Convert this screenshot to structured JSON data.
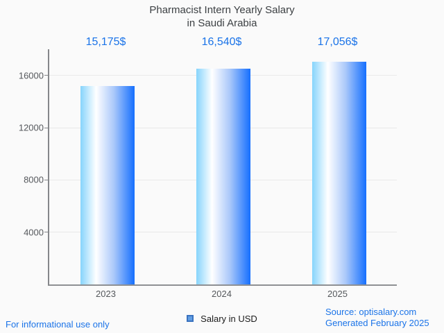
{
  "title": {
    "line1": "Pharmacist Intern Yearly Salary",
    "line2": "in Saudi Arabia"
  },
  "chart_data": {
    "type": "bar",
    "title": "Pharmacist Intern Yearly Salary in Saudi Arabia",
    "categories": [
      "2023",
      "2024",
      "2025"
    ],
    "values": [
      15175,
      16540,
      17056
    ],
    "value_labels": [
      "15,175$",
      "16,540$",
      "17,056$"
    ],
    "series_name": "Salary in USD",
    "xlabel": "",
    "ylabel": "",
    "yticks": [
      4000,
      8000,
      12000,
      16000
    ],
    "ylim": [
      0,
      18000
    ],
    "grid": "horizontal",
    "legend_position": "bottom-center",
    "bar_gradient": [
      "#86d4fc",
      "#ffffff",
      "#156ffe"
    ]
  },
  "legend": {
    "label": "Salary in USD"
  },
  "footer": {
    "left": "For informational use only",
    "source": "Source: optisalary.com",
    "generated": "Generated February 2025"
  },
  "colors": {
    "background": "#fafafa",
    "accent_blue": "#1a73e8",
    "title_text": "#3c4043",
    "tick_text": "#55585c",
    "axis_line": "#85878a",
    "gridline": "#e9e9e9",
    "legend_swatch_fill": "#619ee3",
    "legend_swatch_border": "#3a72bf"
  }
}
